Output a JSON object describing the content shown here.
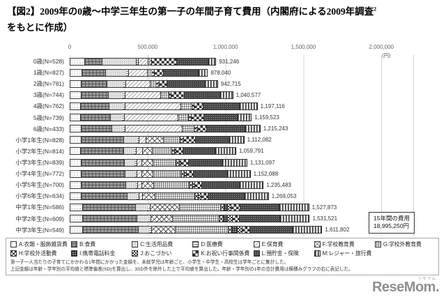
{
  "title": {
    "part1": "【図2】2009年の0歳～中学三年生の第一子の年間子育て費用（内閣府による2009年調査",
    "superscript": "2",
    "part2": "をもとに作成）"
  },
  "chart_data": {
    "type": "bar",
    "orientation": "horizontal",
    "stacked": true,
    "unit": "円",
    "axis": {
      "ticks": [
        "0",
        "500,000",
        "1,000,000",
        "1,500,000",
        "2,000,000"
      ],
      "tick_values": [
        0,
        500000,
        1000000,
        1500000,
        2000000
      ],
      "unit_label": "(円)",
      "xlim": [
        0,
        2200000
      ],
      "grid": true
    },
    "categories": [
      "0歳(N=528)",
      "1歳(N=827)",
      "2歳(N=781)",
      "3歳(N=744)",
      "4歳(N=762)",
      "5歳(N=739)",
      "6歳(N=433)",
      "小学1年生(N=828)",
      "小学2年生(N=814)",
      "小学3年生(N=839)",
      "小学4年生(N=772)",
      "小学5年生(N=700)",
      "小学6年生(N=634)",
      "中学1年生(N=586)",
      "中学2年生(N=609)",
      "中学3年生(N=549)"
    ],
    "totals": [
      931246,
      878040,
      942715,
      1040577,
      1197116,
      1159523,
      1215243,
      1112082,
      1059791,
      1131097,
      1152088,
      1235483,
      1269053,
      1527873,
      1531521,
      1611802
    ],
    "total_labels": [
      "931,246",
      "878,040",
      "942,715",
      "1,040,577",
      "1,197,116",
      "1,159,523",
      "1,215,243",
      "1,112,082",
      "1,059,791",
      "1,131,097",
      "1,152,088",
      "1,235,483",
      "1,269,053",
      "1,527,873",
      "1,531,521",
      "1,611,802"
    ],
    "segment_values_estimated_from_bar_lengths": true,
    "series": [
      {
        "key": "A",
        "name": "A:衣類・服飾雑貨費",
        "values": [
          88513,
          70158,
          66000,
          65000,
          64000,
          63000,
          66000,
          68000,
          64000,
          65000,
          65000,
          66000,
          67000,
          76000,
          77000,
          78000
        ]
      },
      {
        "key": "B",
        "name": "B:食費",
        "values": [
          111126,
          153571,
          166000,
          176000,
          184000,
          190000,
          196000,
          270000,
          274000,
          278000,
          282000,
          288000,
          294000,
          340000,
          350000,
          356000
        ]
      },
      {
        "key": "C",
        "name": "C:生活用品費",
        "values": [
          221491,
          133610,
          108000,
          96000,
          88000,
          80000,
          78000,
          90000,
          72000,
          70000,
          68000,
          67000,
          66000,
          75000,
          73000,
          72000
        ]
      },
      {
        "key": "D",
        "name": "D:医療費",
        "values": [
          13865,
          12541,
          12000,
          12000,
          11500,
          11500,
          11000,
          11000,
          10500,
          10500,
          10500,
          10500,
          10500,
          11000,
          11000,
          11000
        ]
      },
      {
        "key": "E",
        "name": "E:保育費",
        "values": [
          62790,
          121580,
          158000,
          225000,
          355000,
          340000,
          360000,
          45000,
          40000,
          35000,
          30000,
          25000,
          22000,
          6000,
          4000,
          3000
        ]
      },
      {
        "key": "F",
        "name": "F:学校教育費",
        "values": [
          0,
          0,
          0,
          3000,
          4000,
          4500,
          6000,
          112000,
          63000,
          70000,
          73000,
          78000,
          82000,
          190000,
          140000,
          150000
        ]
      },
      {
        "key": "G",
        "name": "G:学校外教育費",
        "values": [
          14784,
          32405,
          42000,
          52000,
          70000,
          68000,
          76000,
          105000,
          125000,
          149000,
          180000,
          225000,
          254000,
          262000,
          298000,
          340000
        ]
      },
      {
        "key": "H",
        "name": "H:学校外活動費",
        "values": [
          7774,
          11454,
          13000,
          14000,
          15000,
          16000,
          17000,
          18000,
          19000,
          20000,
          21000,
          22000,
          23000,
          24000,
          25000,
          25000
        ]
      },
      {
        "key": "I",
        "name": "I:携帯電話料金",
        "values": [
          194,
          260,
          300,
          300,
          300,
          300,
          400,
          2000,
          2500,
          3000,
          4000,
          5000,
          6000,
          22000,
          30000,
          34000
        ]
      },
      {
        "key": "J",
        "name": "J:おこづかい",
        "values": [
          487,
          650,
          900,
          1200,
          1500,
          1700,
          1800,
          6000,
          7000,
          8000,
          9000,
          10000,
          11000,
          24000,
          28000,
          32000
        ]
      },
      {
        "key": "K",
        "name": "K:お祝い行事関係費",
        "values": [
          159354,
          59354,
          53000,
          87000,
          56000,
          81000,
          62000,
          72000,
          45000,
          46000,
          44000,
          44000,
          45000,
          58000,
          46000,
          48000
        ]
      },
      {
        "key": "L",
        "name": "L:預貯金・保険",
        "values": [
          199402,
          223457,
          241515,
          226077,
          233816,
          213523,
          246043,
          216082,
          205791,
          216597,
          215588,
          239983,
          233553,
          249873,
          259521,
          272802
        ]
      },
      {
        "key": "M",
        "name": "M:レジャー・旅行費",
        "values": [
          51466,
          59000,
          82000,
          83000,
          114000,
          90000,
          95000,
          97000,
          132000,
          160000,
          150000,
          155000,
          155000,
          190000,
          190000,
          190000
        ]
      }
    ],
    "note_box": {
      "line1": "15年間の費用",
      "line2": "18,995,250円"
    }
  },
  "legend": {
    "items": [
      {
        "key": "A",
        "label": "A:衣類・服飾雑貨費"
      },
      {
        "key": "B",
        "label": "B:食費"
      },
      {
        "key": "C",
        "label": "C:生活用品費"
      },
      {
        "key": "D",
        "label": "D:医療費"
      },
      {
        "key": "E",
        "label": "E:保育費"
      },
      {
        "key": "F",
        "label": "F:学校教育費"
      },
      {
        "key": "G",
        "label": "G:学校外教育費"
      },
      {
        "key": "H",
        "label": "H:学校外活動費"
      },
      {
        "key": "I",
        "label": "I:携帯電話料金"
      },
      {
        "key": "J",
        "label": "J:おこづかい"
      },
      {
        "key": "K",
        "label": "K:お祝い行事関係費"
      },
      {
        "key": "L",
        "label": "L:預貯金・保険"
      },
      {
        "key": "M",
        "label": "M:レジャー・旅行費"
      }
    ]
  },
  "footnotes": [
    "第一子一人当たりの子育てにかかわる1年間にかかった金額を、未就学児は年齢ごと、小学生・中学生・高校生は学年ごとに集計した。",
    "上記金額は年齢・学年別の平均値と標準偏差(SD)を算出し、3SD外を除外した上で平均値を算出した。年齢・学年別の1年の合計費用は横積みグラフの右に表記した。"
  ],
  "logo": {
    "text": "ReseMom.",
    "ruby": "リセマム"
  },
  "colors": {
    "background": "#ffffff",
    "grid": "#d4d4d4",
    "bar_border": "#333333",
    "text": "#333333",
    "logo": "#8f8f8f"
  }
}
